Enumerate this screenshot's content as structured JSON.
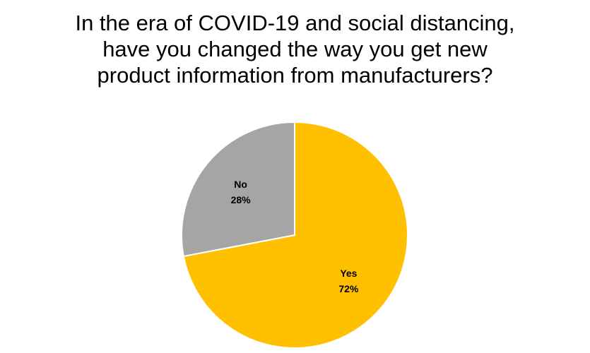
{
  "chart_data": {
    "type": "pie",
    "title_lines": [
      "In the era of COVID-19 and social distancing,",
      "have you changed the way you get new",
      "product information from manufacturers?"
    ],
    "slices": [
      {
        "label": "Yes",
        "value": 72,
        "value_label": "72%",
        "color": "#FFC000"
      },
      {
        "label": "No",
        "value": 28,
        "value_label": "28%",
        "color": "#A5A5A5"
      }
    ],
    "legend": "none"
  }
}
